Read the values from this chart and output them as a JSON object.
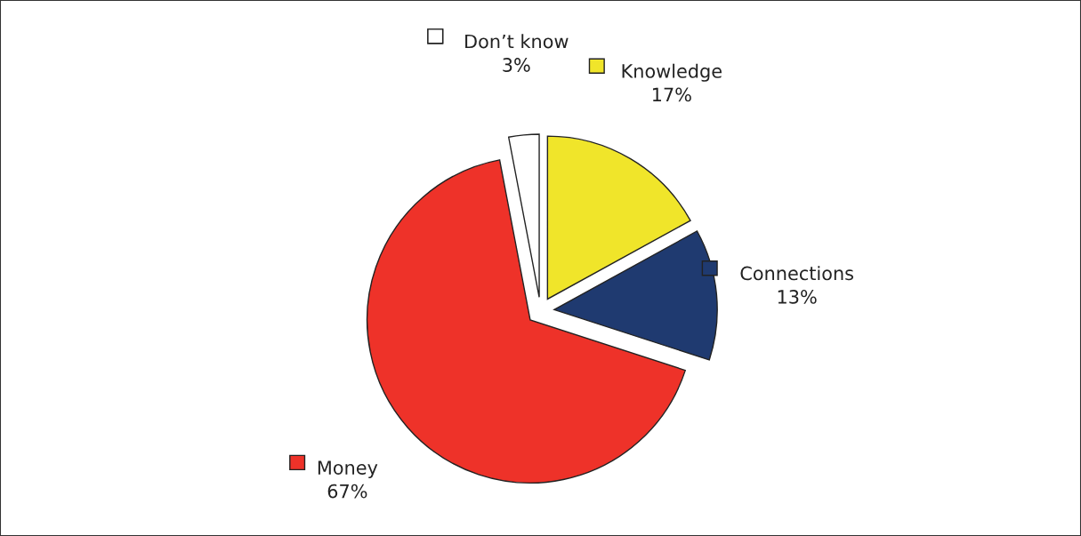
{
  "chart_data": {
    "type": "pie",
    "categories": [
      "Knowledge",
      "Connections",
      "Money",
      "Don’t know"
    ],
    "values": [
      17,
      13,
      67,
      3
    ],
    "colors": [
      "#f0e52a",
      "#1f3a70",
      "#ee3229",
      "#ffffff"
    ],
    "value_labels": [
      "17%",
      "13%",
      "67%",
      "3%"
    ],
    "legend": true
  }
}
